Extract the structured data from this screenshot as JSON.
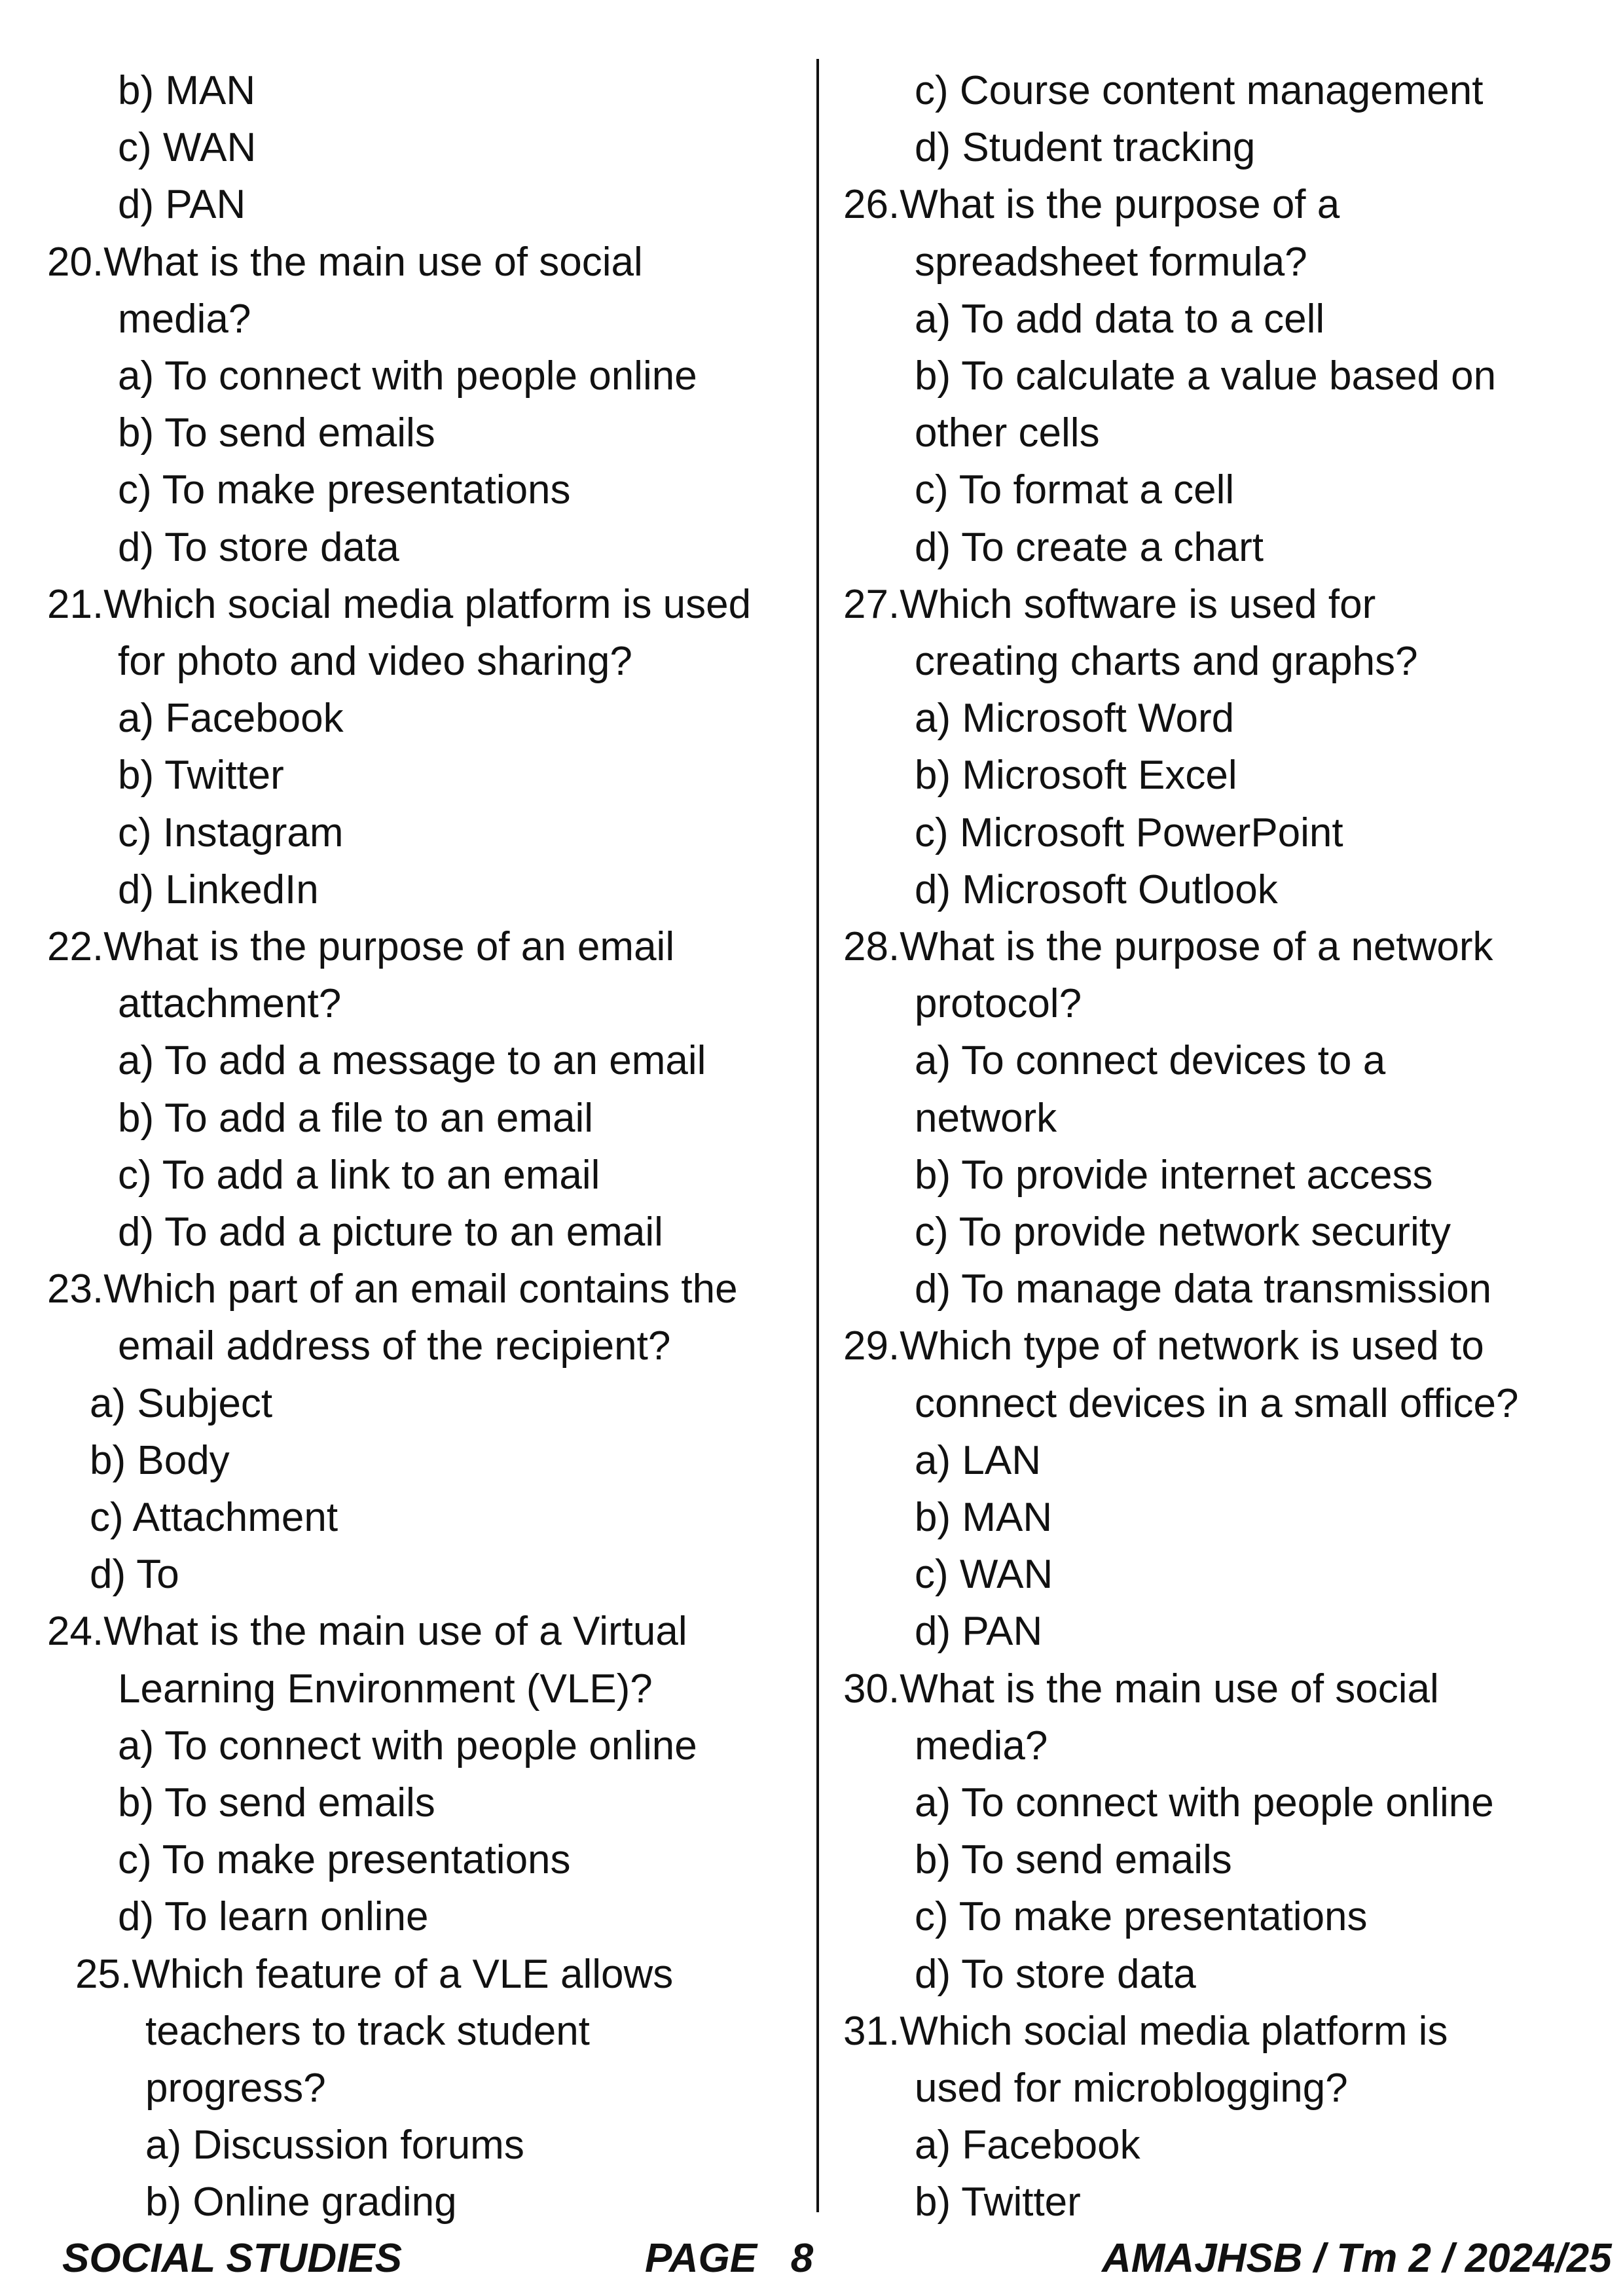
{
  "left_column": [
    {
      "text": "b) MAN",
      "indent": "opt"
    },
    {
      "text": "c) WAN",
      "indent": "opt"
    },
    {
      "text": "d) PAN",
      "indent": "opt"
    },
    {
      "text": "20.What is the main use of social",
      "indent": "q"
    },
    {
      "text": "media?",
      "indent": "opt"
    },
    {
      "text": "a) To connect with people online",
      "indent": "opt"
    },
    {
      "text": "b) To send emails",
      "indent": "opt"
    },
    {
      "text": "c) To make presentations",
      "indent": "opt"
    },
    {
      "text": "d) To store data",
      "indent": "opt"
    },
    {
      "text": "21.Which social media platform is used",
      "indent": "q"
    },
    {
      "text": "for photo and video sharing?",
      "indent": "opt"
    },
    {
      "text": "a) Facebook",
      "indent": "opt"
    },
    {
      "text": "b) Twitter",
      "indent": "opt"
    },
    {
      "text": "c) Instagram",
      "indent": "opt"
    },
    {
      "text": "d) LinkedIn",
      "indent": "opt"
    },
    {
      "text": "22.What is the purpose of an email",
      "indent": "q"
    },
    {
      "text": "attachment?",
      "indent": "opt"
    },
    {
      "text": "a) To add a message to an email",
      "indent": "opt"
    },
    {
      "text": "b) To add a file to an email",
      "indent": "opt"
    },
    {
      "text": "c) To add a link to an email",
      "indent": "opt"
    },
    {
      "text": "d) To add a picture to an email",
      "indent": "opt"
    },
    {
      "text": "23.Which part of an email contains the",
      "indent": "q"
    },
    {
      "text": "email address of the recipient?",
      "indent": "opt"
    },
    {
      "text": "a) Subject",
      "indent": "opt2"
    },
    {
      "text": "b) Body",
      "indent": "opt2"
    },
    {
      "text": "c) Attachment",
      "indent": "opt2"
    },
    {
      "text": "d) To",
      "indent": "opt2"
    },
    {
      "text": "24.What is the main use of a Virtual",
      "indent": "q"
    },
    {
      "text": "Learning Environment (VLE)?",
      "indent": "opt"
    },
    {
      "text": "a) To connect with people online",
      "indent": "opt"
    },
    {
      "text": "b) To send emails",
      "indent": "opt"
    },
    {
      "text": "c) To make presentations",
      "indent": "opt"
    },
    {
      "text": "d) To learn online",
      "indent": "opt"
    },
    {
      "text": "25.Which feature of a VLE allows",
      "indent": "q2"
    },
    {
      "text": "teachers to track student",
      "indent": "opt3"
    },
    {
      "text": "progress?",
      "indent": "opt3"
    },
    {
      "text": "a) Discussion forums",
      "indent": "opt3"
    },
    {
      "text": "b) Online grading",
      "indent": "opt3"
    }
  ],
  "right_column": [
    {
      "text": "c) Course content management",
      "indent": "opt"
    },
    {
      "text": "d) Student tracking",
      "indent": "opt"
    },
    {
      "text": "26.What is the purpose of a",
      "indent": "q"
    },
    {
      "text": "spreadsheet formula?",
      "indent": "opt"
    },
    {
      "text": "a) To add data to a cell",
      "indent": "opt"
    },
    {
      "text": "b) To calculate a value based on",
      "indent": "opt"
    },
    {
      "text": "other cells",
      "indent": "opt"
    },
    {
      "text": "c) To format a cell",
      "indent": "opt"
    },
    {
      "text": "d) To create a chart",
      "indent": "opt"
    },
    {
      "text": "27.Which software is used for",
      "indent": "q"
    },
    {
      "text": "creating charts and graphs?",
      "indent": "opt"
    },
    {
      "text": "a) Microsoft Word",
      "indent": "opt"
    },
    {
      "text": "b) Microsoft Excel",
      "indent": "opt"
    },
    {
      "text": "c) Microsoft PowerPoint",
      "indent": "opt"
    },
    {
      "text": "d) Microsoft Outlook",
      "indent": "opt"
    },
    {
      "text": "28.What is the purpose of a network",
      "indent": "q"
    },
    {
      "text": "protocol?",
      "indent": "opt"
    },
    {
      "text": "a) To connect devices to a",
      "indent": "opt"
    },
    {
      "text": "network",
      "indent": "opt"
    },
    {
      "text": "b) To provide internet access",
      "indent": "opt"
    },
    {
      "text": "c) To provide network security",
      "indent": "opt"
    },
    {
      "text": "d) To manage data transmission",
      "indent": "opt"
    },
    {
      "text": "29.Which type of network is used to",
      "indent": "q"
    },
    {
      "text": "connect devices in a small office?",
      "indent": "opt"
    },
    {
      "text": "a) LAN",
      "indent": "opt"
    },
    {
      "text": "b) MAN",
      "indent": "opt"
    },
    {
      "text": "c) WAN",
      "indent": "opt"
    },
    {
      "text": "d) PAN",
      "indent": "opt"
    },
    {
      "text": "30.What is the main use of social",
      "indent": "q"
    },
    {
      "text": "media?",
      "indent": "opt"
    },
    {
      "text": "a) To connect with people online",
      "indent": "opt"
    },
    {
      "text": "b) To send emails",
      "indent": "opt"
    },
    {
      "text": "c) To make presentations",
      "indent": "opt"
    },
    {
      "text": "d) To store data",
      "indent": "opt"
    },
    {
      "text": "31.Which social media platform is",
      "indent": "q"
    },
    {
      "text": "used for microblogging?",
      "indent": "opt"
    },
    {
      "text": "a) Facebook",
      "indent": "opt"
    },
    {
      "text": "b) Twitter",
      "indent": "opt"
    }
  ],
  "footer": {
    "subject": "SOCIAL STUDIES",
    "page": "PAGE   8",
    "code": "AMAJHSB / Tm 2 / 2024/25"
  }
}
